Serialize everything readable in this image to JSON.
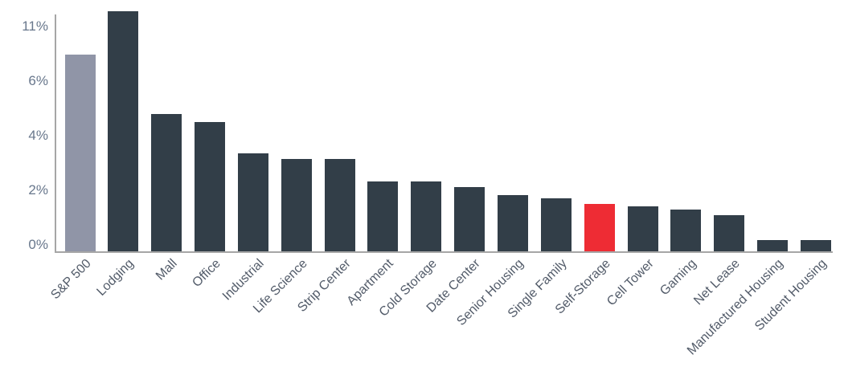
{
  "chart_data": {
    "type": "bar",
    "title": "",
    "unit": "%",
    "categories": [
      "S&P 500",
      "Lodging",
      "Mall",
      "Office",
      "Industrial",
      "Life Science",
      "Strip Center",
      "Apartment",
      "Cold Storage",
      "Date Center",
      "Senior Housing",
      "Single Family",
      "Self-Storage",
      "Cell Tower",
      "Gaming",
      "Net Lease",
      "Manufactured Housing",
      "Student Housing"
    ],
    "values": [
      7.0,
      11.5,
      4.9,
      4.6,
      3.5,
      3.3,
      3.3,
      2.5,
      2.5,
      2.3,
      2.0,
      1.9,
      1.7,
      1.6,
      1.5,
      1.3,
      0.4,
      0.4
    ],
    "yticks": [
      {
        "label": "0%",
        "value": 0
      },
      {
        "label": "2%",
        "value": 2
      },
      {
        "label": "4%",
        "value": 4
      },
      {
        "label": "6%",
        "value": 6
      },
      {
        "label": "11%",
        "value": 11,
        "at_axis_top": true
      }
    ],
    "ylim": [
      0,
      8.5
    ],
    "axis_truncated": true,
    "clipped_bars": [
      "Lodging"
    ],
    "grid": false,
    "legend": false,
    "xlabel": "",
    "ylabel": "",
    "benchmark_category": "S&P 500",
    "highlight_category": "Self-Storage",
    "colors": {
      "bar_default": "#323e48",
      "bar_benchmark": "#9095a7",
      "bar_highlight": "#ee2c34",
      "axis_line": "#a6a6a6",
      "ytick_label": "#68778c",
      "xtick_label": "#525b69",
      "background": "#ffffff"
    }
  }
}
